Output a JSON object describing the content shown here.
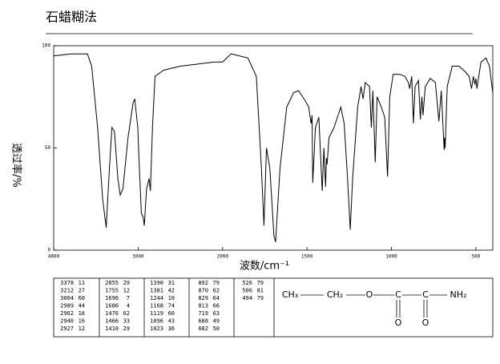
{
  "chart_data": {
    "type": "line",
    "title": "石蜡糊法",
    "xlabel": "波数/cm⁻¹",
    "ylabel": "透过率/%",
    "xlim": [
      4000,
      400
    ],
    "xticks": [
      4000,
      3000,
      2000,
      1500,
      1000,
      500
    ],
    "xbreak": 2000,
    "ylim": [
      0,
      100
    ],
    "yticks": [
      0,
      50,
      100
    ],
    "color": "#000000",
    "x": [
      4000,
      3800,
      3600,
      3550,
      3480,
      3420,
      3378,
      3340,
      3310,
      3280,
      3240,
      3212,
      3180,
      3120,
      3060,
      3040,
      3004,
      2989,
      2962,
      2940,
      2927,
      2900,
      2870,
      2855,
      2830,
      2800,
      2700,
      2500,
      2300,
      2100,
      2000,
      1950,
      1900,
      1850,
      1800,
      1770,
      1755,
      1740,
      1720,
      1696,
      1686,
      1660,
      1620,
      1580,
      1550,
      1510,
      1490,
      1476,
      1470,
      1466,
      1450,
      1430,
      1410,
      1400,
      1390,
      1385,
      1381,
      1370,
      1340,
      1300,
      1280,
      1260,
      1244,
      1230,
      1200,
      1180,
      1168,
      1155,
      1130,
      1119,
      1110,
      1096,
      1085,
      1060,
      1040,
      1023,
      1010,
      990,
      950,
      920,
      900,
      892,
      880,
      870,
      860,
      840,
      829,
      820,
      813,
      800,
      770,
      740,
      719,
      705,
      688,
      685,
      682,
      670,
      640,
      600,
      560,
      540,
      526,
      515,
      506,
      500,
      494,
      470,
      440,
      420,
      400
    ],
    "values": [
      95,
      96,
      96,
      90,
      60,
      25,
      11,
      40,
      60,
      58,
      35,
      27,
      30,
      55,
      72,
      74,
      60,
      44,
      18,
      16,
      12,
      30,
      35,
      29,
      60,
      85,
      88,
      90,
      91,
      92,
      92,
      96,
      95,
      94,
      85,
      40,
      12,
      50,
      40,
      7,
      4,
      40,
      70,
      77,
      78,
      73,
      70,
      62,
      66,
      33,
      60,
      65,
      29,
      50,
      31,
      45,
      42,
      55,
      60,
      70,
      62,
      35,
      10,
      35,
      70,
      80,
      74,
      82,
      80,
      60,
      78,
      43,
      75,
      70,
      65,
      36,
      75,
      86,
      86,
      85,
      82,
      79,
      85,
      62,
      80,
      83,
      64,
      75,
      66,
      80,
      84,
      82,
      63,
      78,
      49,
      55,
      50,
      80,
      90,
      90,
      87,
      85,
      79,
      85,
      81,
      84,
      79,
      92,
      94,
      90,
      77
    ]
  },
  "peak_table": {
    "columns": [
      [
        [
          3378,
          11
        ],
        [
          3212,
          27
        ],
        [
          3004,
          60
        ],
        [
          2989,
          44
        ],
        [
          2962,
          18
        ],
        [
          2940,
          16
        ],
        [
          2927,
          12
        ]
      ],
      [
        [
          2855,
          29
        ],
        [
          1755,
          12
        ],
        [
          1696,
          7
        ],
        [
          1686,
          4
        ],
        [
          1476,
          62
        ],
        [
          1466,
          33
        ],
        [
          1410,
          29
        ]
      ],
      [
        [
          1390,
          31
        ],
        [
          1381,
          42
        ],
        [
          1244,
          10
        ],
        [
          1168,
          74
        ],
        [
          1119,
          60
        ],
        [
          1096,
          43
        ],
        [
          1023,
          36
        ]
      ],
      [
        [
          892,
          79
        ],
        [
          870,
          62
        ],
        [
          829,
          64
        ],
        [
          813,
          66
        ],
        [
          719,
          63
        ],
        [
          688,
          49
        ],
        [
          682,
          50
        ]
      ],
      [
        [
          526,
          79
        ],
        [
          506,
          81
        ],
        [
          494,
          79
        ]
      ]
    ]
  },
  "structure": {
    "atoms": [
      "CH₃",
      "CH₂",
      "O",
      "C",
      "C",
      "NH₂",
      "O",
      "O"
    ]
  }
}
